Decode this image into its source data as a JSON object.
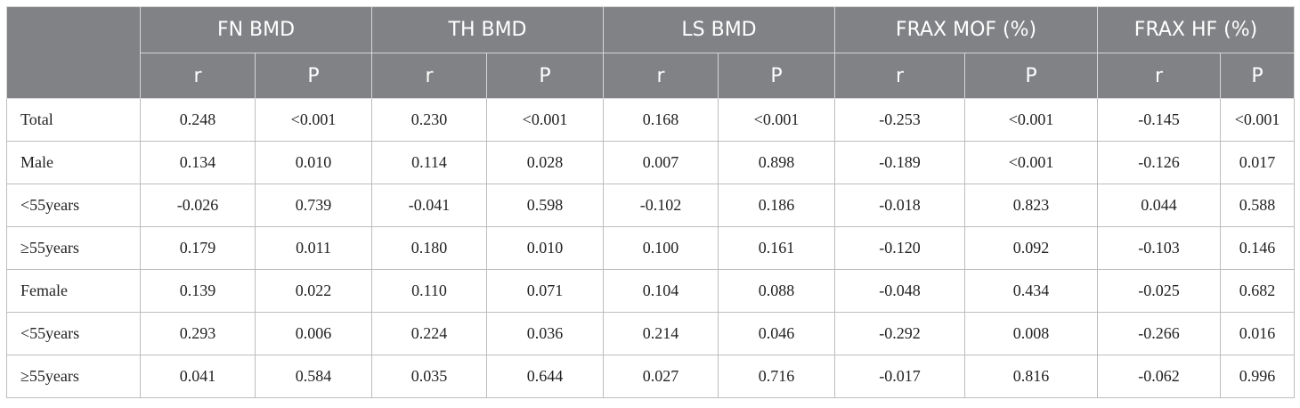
{
  "header": {
    "groups": [
      "FN BMD",
      "TH BMD",
      "LS BMD",
      "FRAX MOF (%)",
      "FRAX HF (%)"
    ],
    "sub": [
      "r",
      "P",
      "r",
      "P",
      "r",
      "P",
      "r",
      "P",
      "r",
      "P"
    ]
  },
  "rows": [
    {
      "label": "Total",
      "values": [
        "0.248",
        "<0.001",
        "0.230",
        "<0.001",
        "0.168",
        "<0.001",
        "-0.253",
        "<0.001",
        "-0.145",
        "<0.001"
      ]
    },
    {
      "label": "Male",
      "values": [
        "0.134",
        "0.010",
        "0.114",
        "0.028",
        "0.007",
        "0.898",
        "-0.189",
        "<0.001",
        "-0.126",
        "0.017"
      ]
    },
    {
      "label": "<55years",
      "values": [
        "-0.026",
        "0.739",
        "-0.041",
        "0.598",
        "-0.102",
        "0.186",
        "-0.018",
        "0.823",
        "0.044",
        "0.588"
      ]
    },
    {
      "label": "≥55years",
      "values": [
        "0.179",
        "0.011",
        "0.180",
        "0.010",
        "0.100",
        "0.161",
        "-0.120",
        "0.092",
        "-0.103",
        "0.146"
      ]
    },
    {
      "label": "Female",
      "values": [
        "0.139",
        "0.022",
        "0.110",
        "0.071",
        "0.104",
        "0.088",
        "-0.048",
        "0.434",
        "-0.025",
        "0.682"
      ]
    },
    {
      "label": "<55years",
      "values": [
        "0.293",
        "0.006",
        "0.224",
        "0.036",
        "0.214",
        "0.046",
        "-0.292",
        "0.008",
        "-0.266",
        "0.016"
      ]
    },
    {
      "label": "≥55years",
      "values": [
        "0.041",
        "0.584",
        "0.035",
        "0.644",
        "0.027",
        "0.716",
        "-0.017",
        "0.816",
        "-0.062",
        "0.996"
      ]
    }
  ]
}
